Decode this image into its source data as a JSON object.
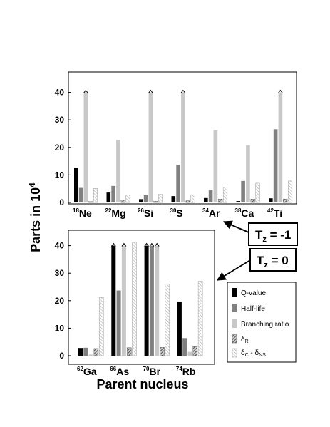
{
  "chart_data": {
    "type": "bar",
    "ylabel": {
      "main": "Parts in 10",
      "sup": "4"
    },
    "xlabel": "Parent nucleus",
    "legend": [
      {
        "key": "q",
        "label": "Q-value"
      },
      {
        "key": "h",
        "label": "Half-life"
      },
      {
        "key": "b",
        "label": "Branching ratio"
      },
      {
        "key": "dr",
        "label": "δ",
        "sub": "R"
      },
      {
        "key": "dc",
        "label": "δ",
        "sub": "C",
        "sep": " - δ",
        "sub2": "NS"
      }
    ],
    "annotations": [
      {
        "label": "T",
        "sub": "z",
        "eq": " = -1"
      },
      {
        "label": "T",
        "sub": "z",
        "eq": " = 0"
      }
    ],
    "panels": [
      {
        "ylim": [
          0,
          44
        ],
        "yticks": [
          0,
          10,
          20,
          30,
          40
        ],
        "categories": [
          {
            "mass": "18",
            "symbol": "Ne"
          },
          {
            "mass": "22",
            "symbol": "Mg"
          },
          {
            "mass": "26",
            "symbol": "Si"
          },
          {
            "mass": "30",
            "symbol": "S"
          },
          {
            "mass": "34",
            "symbol": "Ar"
          },
          {
            "mass": "38",
            "symbol": "Ca"
          },
          {
            "mass": "42",
            "symbol": "Ti"
          }
        ],
        "series": {
          "q": [
            12.6,
            3.6,
            1.2,
            2.3,
            1.6,
            0.5,
            1.5
          ],
          "h": [
            5.3,
            6.0,
            2.6,
            13.6,
            4.5,
            7.8,
            26.6
          ],
          "b": [
            40,
            22.7,
            40,
            40,
            26.4,
            20.8,
            40
          ],
          "dr": [
            0.3,
            0.8,
            0.4,
            0.6,
            1.2,
            1.2,
            1.2
          ],
          "dc": [
            5.1,
            2.7,
            2.9,
            2.8,
            5.6,
            7.0,
            7.8
          ]
        },
        "truncated": [
          {
            "series": "b",
            "index": 0
          },
          {
            "series": "b",
            "index": 2
          },
          {
            "series": "b",
            "index": 3
          },
          {
            "series": "b",
            "index": 6
          }
        ]
      },
      {
        "ylim": [
          0,
          44
        ],
        "yticks": [
          0,
          10,
          20,
          30,
          40
        ],
        "categories": [
          {
            "mass": "62",
            "symbol": "Ga"
          },
          {
            "mass": "66",
            "symbol": "As"
          },
          {
            "mass": "70",
            "symbol": "Br"
          },
          {
            "mass": "74",
            "symbol": "Rb"
          }
        ],
        "series": {
          "q": [
            2.8,
            40,
            40,
            19.7
          ],
          "h": [
            2.9,
            23.7,
            40,
            6.4
          ],
          "b": [
            0.4,
            40,
            40,
            1.4
          ],
          "dr": [
            2.6,
            2.9,
            3.0,
            3.3
          ],
          "dc": [
            21.2,
            41.2,
            26.0,
            27.1
          ]
        },
        "truncated": [
          {
            "series": "q",
            "index": 1
          },
          {
            "series": "b",
            "index": 1
          },
          {
            "series": "q",
            "index": 2
          },
          {
            "series": "h",
            "index": 2
          },
          {
            "series": "b",
            "index": 2
          }
        ]
      }
    ]
  }
}
